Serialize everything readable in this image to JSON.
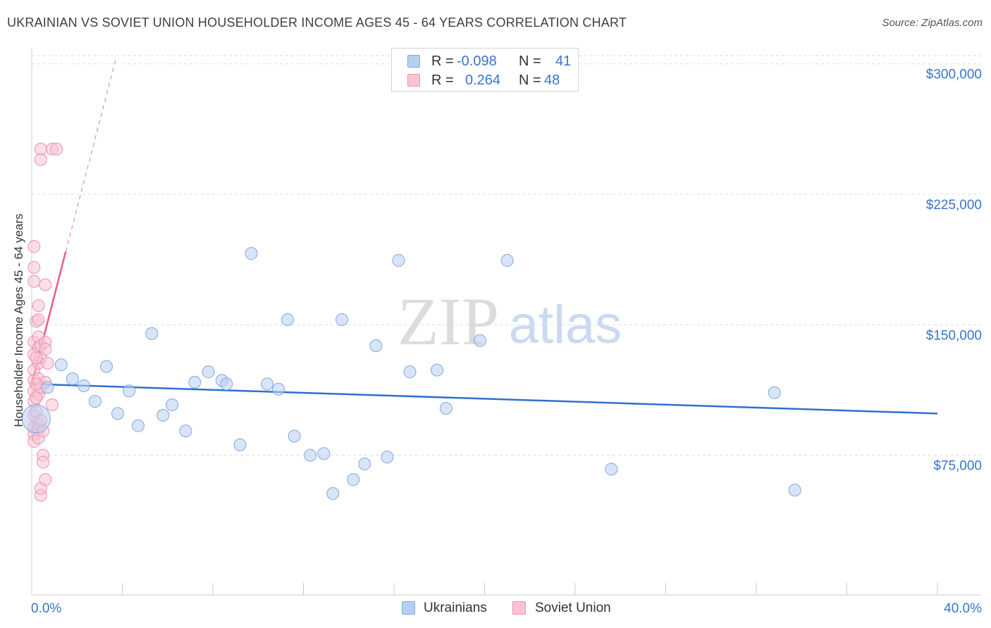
{
  "title": "UKRAINIAN VS SOVIET UNION HOUSEHOLDER INCOME AGES 45 - 64 YEARS CORRELATION CHART",
  "source": "Source: ZipAtlas.com",
  "watermark": {
    "zip": "ZIP",
    "atlas": "atlas"
  },
  "colors": {
    "blue_fill": "#b8d0f0",
    "blue_stroke": "#7fa8e0",
    "blue_line": "#2f6fd0",
    "pink_fill": "#f8c4d4",
    "pink_stroke": "#ee8fb0",
    "pink_line": "#e85a8a",
    "value_text": "#3a74c8",
    "grid": "#dddddd"
  },
  "stats": {
    "rows": [
      {
        "r_label": "R =",
        "r_value": "-0.098",
        "n_label": "N =",
        "n_value": "41"
      },
      {
        "r_label": "R =",
        "r_value": "0.264",
        "n_label": "N =",
        "n_value": "48"
      }
    ]
  },
  "legend": {
    "items": [
      "Ukrainians",
      "Soviet Union"
    ]
  },
  "chart_data": {
    "type": "scatter",
    "title": "UKRAINIAN VS SOVIET UNION HOUSEHOLDER INCOME AGES 45 - 64 YEARS CORRELATION CHART",
    "xlabel": "",
    "ylabel": "Householder Income Ages 45 - 64 years",
    "xlim": [
      0,
      40
    ],
    "ylim": [
      0,
      310000
    ],
    "x_tick_labels": [
      "0.0%",
      "40.0%"
    ],
    "y_ticks": [
      75000,
      150000,
      225000,
      300000
    ],
    "y_tick_labels": [
      "$75,000",
      "$150,000",
      "$225,000",
      "$300,000"
    ],
    "grid": true,
    "series": [
      {
        "name": "Ukrainians",
        "r": -0.098,
        "n": 41,
        "trend": {
          "x": [
            0.0,
            40.0
          ],
          "y": [
            116000,
            99000
          ]
        },
        "points": [
          {
            "x": 0.2,
            "y": 96000,
            "big": true
          },
          {
            "x": 0.7,
            "y": 114000
          },
          {
            "x": 1.3,
            "y": 127000
          },
          {
            "x": 1.8,
            "y": 119000
          },
          {
            "x": 2.3,
            "y": 115000
          },
          {
            "x": 2.8,
            "y": 106000
          },
          {
            "x": 3.3,
            "y": 126000
          },
          {
            "x": 3.8,
            "y": 99000
          },
          {
            "x": 4.3,
            "y": 112000
          },
          {
            "x": 4.7,
            "y": 92000
          },
          {
            "x": 5.3,
            "y": 145000
          },
          {
            "x": 5.8,
            "y": 98000
          },
          {
            "x": 6.2,
            "y": 104000
          },
          {
            "x": 6.8,
            "y": 89000
          },
          {
            "x": 7.2,
            "y": 117000
          },
          {
            "x": 7.8,
            "y": 123000
          },
          {
            "x": 8.4,
            "y": 118000
          },
          {
            "x": 8.6,
            "y": 116000
          },
          {
            "x": 9.2,
            "y": 81000
          },
          {
            "x": 9.7,
            "y": 191000
          },
          {
            "x": 10.4,
            "y": 116000
          },
          {
            "x": 10.9,
            "y": 113000
          },
          {
            "x": 11.3,
            "y": 153000
          },
          {
            "x": 11.6,
            "y": 86000
          },
          {
            "x": 12.3,
            "y": 75000
          },
          {
            "x": 12.9,
            "y": 76000
          },
          {
            "x": 13.3,
            "y": 53000
          },
          {
            "x": 13.7,
            "y": 153000
          },
          {
            "x": 14.2,
            "y": 61000
          },
          {
            "x": 14.7,
            "y": 70000
          },
          {
            "x": 15.2,
            "y": 138000
          },
          {
            "x": 15.7,
            "y": 74000
          },
          {
            "x": 16.2,
            "y": 187000
          },
          {
            "x": 16.7,
            "y": 123000
          },
          {
            "x": 17.9,
            "y": 124000
          },
          {
            "x": 18.3,
            "y": 102000
          },
          {
            "x": 19.8,
            "y": 141000
          },
          {
            "x": 21.0,
            "y": 187000
          },
          {
            "x": 25.6,
            "y": 67000
          },
          {
            "x": 32.8,
            "y": 111000
          },
          {
            "x": 33.7,
            "y": 55000
          }
        ]
      },
      {
        "name": "Soviet Union",
        "r": 0.264,
        "n": 48,
        "trend": {
          "x": [
            0.0,
            1.5
          ],
          "y": [
            116000,
            192000
          ]
        },
        "trend_extension": {
          "x": [
            1.5,
            3.7
          ],
          "y": [
            192000,
            302000
          ]
        },
        "points": [
          {
            "x": 0.1,
            "y": 195000
          },
          {
            "x": 0.1,
            "y": 183000
          },
          {
            "x": 0.1,
            "y": 175000
          },
          {
            "x": 0.2,
            "y": 152000
          },
          {
            "x": 0.1,
            "y": 140000
          },
          {
            "x": 0.1,
            "y": 133000
          },
          {
            "x": 0.1,
            "y": 124000
          },
          {
            "x": 0.1,
            "y": 118000
          },
          {
            "x": 0.1,
            "y": 112000
          },
          {
            "x": 0.1,
            "y": 106000
          },
          {
            "x": 0.1,
            "y": 98000
          },
          {
            "x": 0.1,
            "y": 91000
          },
          {
            "x": 0.1,
            "y": 87000
          },
          {
            "x": 0.1,
            "y": 83000
          },
          {
            "x": 0.2,
            "y": 100000
          },
          {
            "x": 0.3,
            "y": 93000
          },
          {
            "x": 0.3,
            "y": 110000
          },
          {
            "x": 0.3,
            "y": 119000
          },
          {
            "x": 0.3,
            "y": 128000
          },
          {
            "x": 0.3,
            "y": 137000
          },
          {
            "x": 0.3,
            "y": 143000
          },
          {
            "x": 0.3,
            "y": 153000
          },
          {
            "x": 0.3,
            "y": 161000
          },
          {
            "x": 0.3,
            "y": 90000
          },
          {
            "x": 0.3,
            "y": 85000
          },
          {
            "x": 0.4,
            "y": 251000
          },
          {
            "x": 0.4,
            "y": 245000
          },
          {
            "x": 0.4,
            "y": 131000
          },
          {
            "x": 0.4,
            "y": 138000
          },
          {
            "x": 0.4,
            "y": 114000
          },
          {
            "x": 0.4,
            "y": 95000
          },
          {
            "x": 0.4,
            "y": 52000
          },
          {
            "x": 0.4,
            "y": 56000
          },
          {
            "x": 0.5,
            "y": 75000
          },
          {
            "x": 0.5,
            "y": 71000
          },
          {
            "x": 0.5,
            "y": 89000
          },
          {
            "x": 0.6,
            "y": 173000
          },
          {
            "x": 0.6,
            "y": 140000
          },
          {
            "x": 0.6,
            "y": 117000
          },
          {
            "x": 0.6,
            "y": 136000
          },
          {
            "x": 0.6,
            "y": 61000
          },
          {
            "x": 0.7,
            "y": 128000
          },
          {
            "x": 0.9,
            "y": 104000
          },
          {
            "x": 0.9,
            "y": 251000
          },
          {
            "x": 1.1,
            "y": 251000
          },
          {
            "x": 0.2,
            "y": 131000
          },
          {
            "x": 0.2,
            "y": 116000
          },
          {
            "x": 0.2,
            "y": 108000
          }
        ]
      }
    ]
  }
}
